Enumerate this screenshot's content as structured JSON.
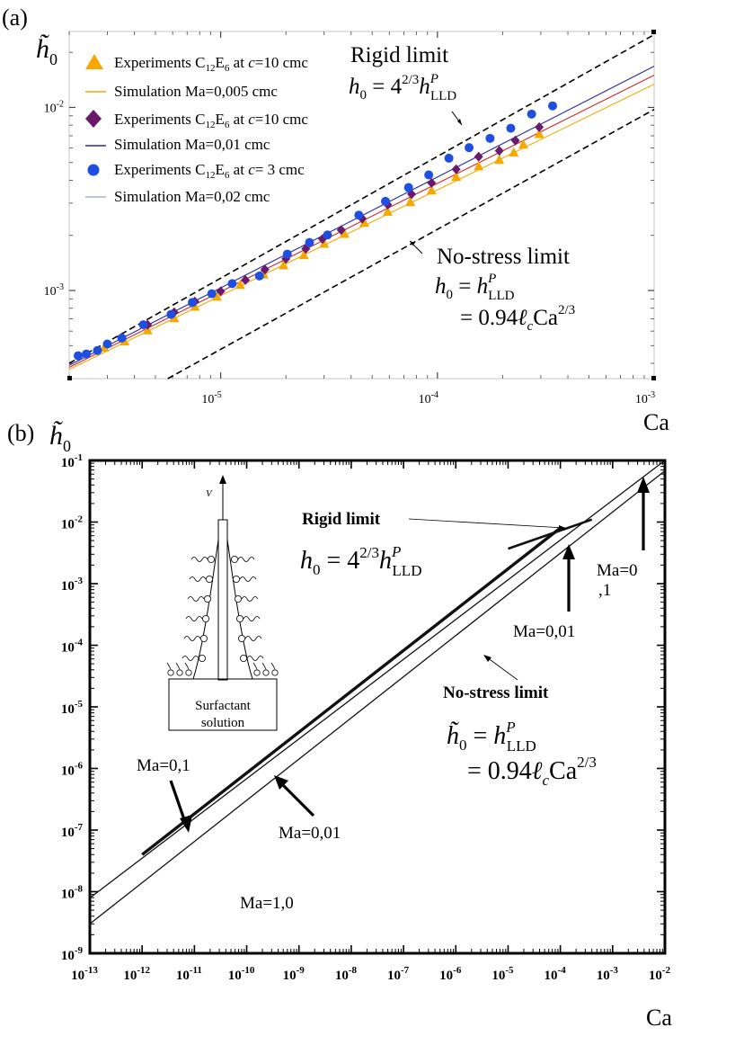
{
  "panels": {
    "a": {
      "label": "(a)"
    },
    "b": {
      "label": "(b)"
    }
  },
  "chart_data": [
    {
      "panel": "a",
      "type": "scatter",
      "ylabel": "h̃0",
      "ylabel_main": "h̃",
      "ylabel_sub": "0",
      "xlabel": "Ca",
      "x_scale": "log",
      "y_scale": "log",
      "xlim": [
        2e-06,
        0.001
      ],
      "ylim": [
        0.00033,
        0.026
      ],
      "x_tick_labels": [
        {
          "value": 1e-05,
          "base": "10",
          "exp": "-5"
        },
        {
          "value": 0.0001,
          "base": "10",
          "exp": "-4"
        },
        {
          "value": 0.001,
          "base": "10",
          "exp": "-3"
        }
      ],
      "y_tick_labels": [
        {
          "value": 0.001,
          "base": "10",
          "exp": "-3"
        },
        {
          "value": 0.01,
          "base": "10",
          "exp": "-2"
        }
      ],
      "colors": {
        "orange": "#f5a800",
        "purple": "#6a1a6a",
        "blue": "#1f4fe0",
        "simRed": "#cc2a2a"
      },
      "legend": [
        {
          "marker": "triangle",
          "color": "#f5a800",
          "pre": "Experiments C",
          "s1": "12",
          "mid": "E",
          "s2": "6",
          "post1": " at ",
          "ital": "c",
          "post2": "=10 cmc"
        },
        {
          "marker": "line",
          "color": "#f5a800",
          "text": "Simulation Ma=0,005 cmc"
        },
        {
          "marker": "diamond",
          "color": "#6a1a6a",
          "pre": "Experiments C",
          "s1": "12",
          "mid": "E",
          "s2": "6",
          "post1": " at ",
          "ital": "c",
          "post2": "=10 cmc"
        },
        {
          "marker": "line",
          "color": "#2a2aa0",
          "text": "Simulation Ma=0,01 cmc"
        },
        {
          "marker": "circle",
          "color": "#1f4fe0",
          "pre": "Experiments C",
          "s1": "12",
          "mid": "E",
          "s2": "6",
          "post1": " at ",
          "ital": "c",
          "post2": "= 3 cmc"
        },
        {
          "marker": "line",
          "color": "#9aa4c0",
          "text": "Simulation Ma=0,02 cmc"
        }
      ],
      "series": [
        {
          "name": "Experiments C12E6 at c=10 cmc (triangles)",
          "marker": "triangle",
          "color": "#f5a800",
          "x": [
            2.9e-06,
            3.6e-06,
            4.6e-06,
            6.1e-06,
            7.6e-06,
            9.6e-06,
            1.23e-05,
            1.58e-05,
            1.95e-05,
            2.42e-05,
            3e-05,
            3.72e-05,
            4.6e-05,
            5.9e-05,
            7.5e-05,
            9.4e-05,
            0.000122,
            0.000155,
            0.000193,
            0.000225,
            0.000249,
            0.000295
          ],
          "y": [
            0.00049,
            0.00053,
            0.00061,
            0.00071,
            0.00082,
            0.00093,
            0.00108,
            0.00123,
            0.00138,
            0.00157,
            0.00181,
            0.00205,
            0.00236,
            0.00271,
            0.00306,
            0.00354,
            0.0042,
            0.0048,
            0.0052,
            0.0057,
            0.0063,
            0.0072
          ]
        },
        {
          "name": "Experiments C12E6 at c=10 cmc (diamonds)",
          "marker": "diamond",
          "color": "#6a1a6a",
          "x": [
            4.6e-06,
            6.1e-06,
            7.6e-06,
            1e-05,
            1.3e-05,
            1.6e-05,
            2e-05,
            2.47e-05,
            2.95e-05,
            3.6e-05,
            4.5e-05,
            5.9e-05,
            7.6e-05,
            9.4e-05,
            0.000122,
            0.000155,
            0.000193,
            0.000229,
            0.000295
          ],
          "y": [
            0.00065,
            0.00076,
            0.00087,
            0.00099,
            0.00114,
            0.0013,
            0.00149,
            0.00169,
            0.00191,
            0.00214,
            0.00247,
            0.00294,
            0.00336,
            0.00387,
            0.00459,
            0.00538,
            0.0058,
            0.0066,
            0.0078
          ]
        },
        {
          "name": "Experiments C12E6 at c= 3 cmc (circles)",
          "marker": "circle",
          "color": "#1f4fe0",
          "x": [
            2.2e-06,
            2.4e-06,
            2.7e-06,
            3e-06,
            3.5e-06,
            4.4e-06,
            5.9e-06,
            7.4e-06,
            9.1e-06,
            1.13e-05,
            1.51e-05,
            2.03e-05,
            2.57e-05,
            3.11e-05,
            4.34e-05,
            5.76e-05,
            7.36e-05,
            9.12e-05,
            0.000113,
            0.00014,
            0.000175,
            0.000218,
            0.000272,
            0.00034
          ],
          "y": [
            0.00044,
            0.00045,
            0.00047,
            0.00051,
            0.00055,
            0.00065,
            0.00074,
            0.00086,
            0.00096,
            0.00109,
            0.0012,
            0.00158,
            0.00183,
            0.00201,
            0.00258,
            0.00307,
            0.00365,
            0.00428,
            0.00528,
            0.00603,
            0.00678,
            0.0077,
            0.0092,
            0.0102
          ]
        },
        {
          "name": "Simulation Ma=0,005 cmc",
          "marker": "line",
          "color": "#f5a800",
          "x": [
            2e-06,
            0.001
          ],
          "y": [
            0.00037,
            0.0134
          ]
        },
        {
          "name": "Simulation Ma=0,01 cmc",
          "marker": "line",
          "color": "#2a2aa0",
          "x": [
            2e-06,
            0.001
          ],
          "y": [
            0.00039,
            0.0168
          ]
        },
        {
          "name": "Simulation (red)",
          "marker": "line",
          "color": "#cc2a2a",
          "x": [
            2e-06,
            0.001
          ],
          "y": [
            0.00038,
            0.015
          ]
        },
        {
          "name": "Rigid limit",
          "marker": "dashed",
          "color": "#000000",
          "x": [
            2e-06,
            0.001
          ],
          "y": [
            0.0004,
            0.025
          ]
        },
        {
          "name": "No-stress limit",
          "marker": "dashed",
          "color": "#000000",
          "x": [
            5.7e-06,
            0.001
          ],
          "y": [
            0.00033,
            0.00975
          ]
        }
      ],
      "annotations": {
        "rigid_title": "Rigid limit",
        "rigid_eq_lhs": "h",
        "rigid_eq_lhs_sub": "0",
        "rigid_eq_mid": " = 4",
        "rigid_eq_exp": "2/3",
        "rigid_eq_h": "h",
        "rigid_eq_sup": "P",
        "rigid_eq_sub": "LLD",
        "nostress_title": "No-stress limit",
        "nostress_eq1_lhs": "h",
        "nostress_eq1_lhs_sub": "0",
        "nostress_eq1_mid": " = ",
        "nostress_eq1_h": "h",
        "nostress_eq1_sup": "P",
        "nostress_eq1_sub": "LLD",
        "nostress_eq2_a": "= 0.94",
        "nostress_eq2_l": "ℓ",
        "nostress_eq2_lsub": "c",
        "nostress_eq2_ca": "Ca",
        "nostress_eq2_exp": "2/3"
      }
    },
    {
      "panel": "b",
      "type": "line",
      "ylabel": "h̃0",
      "ylabel_main": "h̃",
      "ylabel_sub": "0",
      "xlabel": "Ca",
      "x_scale": "log",
      "y_scale": "log",
      "xlim": [
        1e-13,
        0.01
      ],
      "ylim": [
        1e-09,
        0.1
      ],
      "x_tick_labels": [
        {
          "value": 1e-13,
          "base": "10",
          "exp": "-13"
        },
        {
          "value": 1e-12,
          "base": "10",
          "exp": "-12"
        },
        {
          "value": 1e-11,
          "base": "10",
          "exp": "-11"
        },
        {
          "value": 1e-10,
          "base": "10",
          "exp": "-10"
        },
        {
          "value": 1e-09,
          "base": "10",
          "exp": "-9"
        },
        {
          "value": 1e-08,
          "base": "10",
          "exp": "-8"
        },
        {
          "value": 1e-07,
          "base": "10",
          "exp": "-7"
        },
        {
          "value": 1e-06,
          "base": "10",
          "exp": "-6"
        },
        {
          "value": 1e-05,
          "base": "10",
          "exp": "-5"
        },
        {
          "value": 0.0001,
          "base": "10",
          "exp": "-4"
        },
        {
          "value": 0.001,
          "base": "10",
          "exp": "-3"
        },
        {
          "value": 0.01,
          "base": "10",
          "exp": "-2"
        }
      ],
      "y_tick_labels": [
        {
          "value": 0.1,
          "base": "10",
          "exp": "-1"
        },
        {
          "value": 0.01,
          "base": "10",
          "exp": "-2"
        },
        {
          "value": 0.001,
          "base": "10",
          "exp": "-3"
        },
        {
          "value": 0.0001,
          "base": "10",
          "exp": "-4"
        },
        {
          "value": 1e-05,
          "base": "10",
          "exp": "-5"
        },
        {
          "value": 1e-06,
          "base": "10",
          "exp": "-6"
        },
        {
          "value": 1e-07,
          "base": "10",
          "exp": "-7"
        },
        {
          "value": 1e-08,
          "base": "10",
          "exp": "-8"
        },
        {
          "value": 1e-09,
          "base": "10",
          "exp": "-9"
        }
      ],
      "series": [
        {
          "name": "Rigid limit",
          "style": "thin",
          "x": [
            1e-13,
            0.01
          ],
          "y": [
            7.9e-09,
            0.1
          ]
        },
        {
          "name": "No-stress limit",
          "style": "thin",
          "x": [
            1e-13,
            0.01
          ],
          "y": [
            3e-09,
            0.068
          ]
        },
        {
          "name": "Ma=0,01",
          "style": "thick",
          "x": [
            1e-12,
            0.0001
          ],
          "y": [
            4e-08,
            0.008
          ]
        },
        {
          "name": "Ma=0,1 / Ma=0,01 (upper)",
          "style": "medium",
          "x": [
            1e-05,
            0.0004
          ],
          "y": [
            0.0037,
            0.011
          ]
        }
      ],
      "annotations": {
        "rigid_title": "Rigid limit",
        "rigid_eq_lhs": "h",
        "rigid_eq_lhs_sub": "0",
        "rigid_eq_mid": " = 4",
        "rigid_eq_exp": "2/3",
        "rigid_eq_h": "h",
        "rigid_eq_sup": "P",
        "rigid_eq_sub": "LLD",
        "nostress_title": "No-stress limit",
        "nostress_eq1_lhs": "h̃",
        "nostress_eq1_lhs_sub": "0",
        "nostress_eq1_mid": " = ",
        "nostress_eq1_h": "h",
        "nostress_eq1_sup": "P",
        "nostress_eq1_sub": "LLD",
        "nostress_eq2_a": "= 0.94",
        "nostress_eq2_l": "ℓ",
        "nostress_eq2_lsub": "c",
        "nostress_eq2_ca": "Ca",
        "nostress_eq2_exp": "2/3",
        "ma_01_left": "Ma=0,1",
        "ma_001_mid": "Ma=0,01",
        "ma_10": "Ma=1,0",
        "ma_001_right": "Ma=0,01",
        "ma_0_line1": "Ma=0",
        "ma_0_line2": ",1",
        "inset_v": "V",
        "inset_caption_1": "Surfactant",
        "inset_caption_2": "solution"
      }
    }
  ]
}
